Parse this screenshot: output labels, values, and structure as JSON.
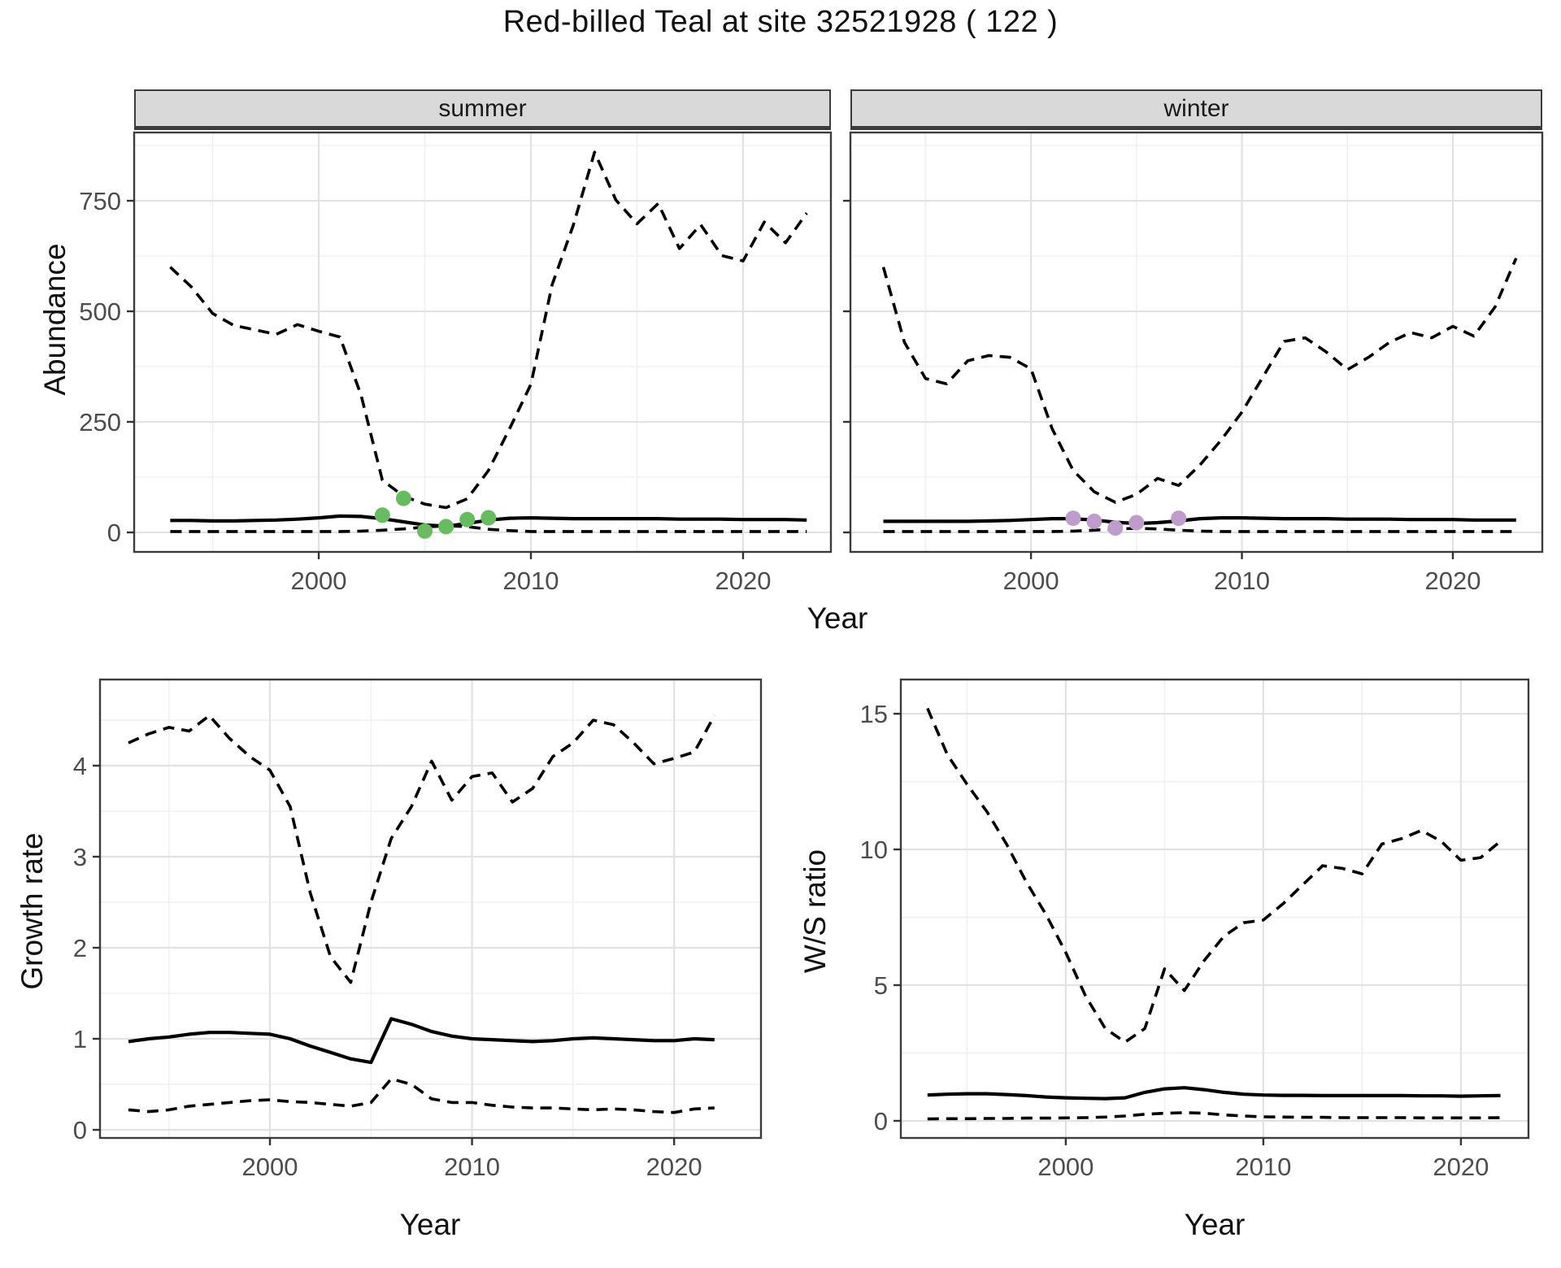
{
  "title": "Red-billed Teal at site 32521928 ( 122 )",
  "facets": [
    {
      "label": "summer"
    },
    {
      "label": "winter"
    }
  ],
  "axes": {
    "top_y": "Abundance",
    "top_x": "Year",
    "bottom_left_y": "Growth rate",
    "bottom_left_x": "Year",
    "bottom_right_y": "W/S ratio",
    "bottom_right_x": "Year"
  },
  "colors": {
    "summer_point": "#67BC5F",
    "winter_point": "#BE9CCC",
    "line": "#000000",
    "grid_major": "#E2E2E2",
    "grid_minor": "#F0F0F0",
    "panel_border": "#3c3c3c",
    "strip_bg": "#d9d9d9",
    "tick_text": "#4d4d4d"
  },
  "chart_data": [
    {
      "id": "abundance_summer",
      "type": "line",
      "facet": "summer",
      "xlabel": "Year",
      "ylabel": "Abundance",
      "xlim": [
        1991.3,
        2024.14
      ],
      "ylim": [
        -44.1,
        904.4
      ],
      "xticks": [
        2000,
        2010,
        2020
      ],
      "xticks_minor": [
        1995,
        2005,
        2015
      ],
      "yticks": [
        0,
        250,
        500,
        750
      ],
      "yticks_minor": [
        125,
        375,
        625,
        875
      ],
      "grid": true,
      "legend": "none",
      "x": [
        1993,
        1994,
        1995,
        1996,
        1997,
        1998,
        1999,
        2000,
        2001,
        2002,
        2003,
        2004,
        2005,
        2006,
        2007,
        2008,
        2009,
        2010,
        2011,
        2012,
        2013,
        2014,
        2015,
        2016,
        2017,
        2018,
        2019,
        2020,
        2021,
        2022,
        2023
      ],
      "series": [
        {
          "name": "ci_upper",
          "style": "dashed",
          "values": [
            600,
            555,
            495,
            468,
            458,
            448,
            470,
            455,
            442,
            310,
            118,
            82,
            64,
            56,
            76,
            140,
            235,
            335,
            560,
            695,
            860,
            752,
            698,
            744,
            642,
            696,
            626,
            614,
            702,
            655,
            722
          ]
        },
        {
          "name": "median",
          "style": "solid",
          "values": [
            27,
            27,
            26,
            26,
            27,
            28,
            30,
            33,
            37,
            36,
            31,
            24,
            17,
            14,
            20,
            28,
            32,
            33,
            32,
            31,
            31,
            31,
            31,
            31,
            30,
            30,
            30,
            29,
            29,
            29,
            28
          ]
        },
        {
          "name": "ci_lower",
          "style": "dashed",
          "values": [
            2,
            2,
            2,
            2,
            2,
            2,
            2,
            2,
            2,
            3,
            5,
            8,
            12,
            15,
            13,
            7,
            4,
            2,
            2,
            2,
            2,
            2,
            2,
            2,
            2,
            2,
            2,
            2,
            2,
            2,
            2
          ]
        }
      ],
      "points": {
        "name": "observed-count-points",
        "color_key": "summer_point",
        "data": [
          [
            2003,
            39
          ],
          [
            2004,
            77
          ],
          [
            2005,
            3
          ],
          [
            2006,
            13
          ],
          [
            2007,
            29
          ],
          [
            2008,
            33
          ]
        ]
      }
    },
    {
      "id": "abundance_winter",
      "type": "line",
      "facet": "winter",
      "xlabel": "Year",
      "ylabel": "Abundance",
      "xlim": [
        1991.44,
        2024.24
      ],
      "ylim": [
        -44.1,
        904.4
      ],
      "xticks": [
        2000,
        2010,
        2020
      ],
      "xticks_minor": [
        1995,
        2005,
        2015
      ],
      "yticks": [
        0,
        250,
        500,
        750
      ],
      "yticks_minor": [
        125,
        375,
        625,
        875
      ],
      "grid": true,
      "legend": "none",
      "show_ytick_labels": false,
      "x": [
        1993,
        1994,
        1995,
        1996,
        1997,
        1998,
        1999,
        2000,
        2001,
        2002,
        2003,
        2004,
        2005,
        2006,
        2007,
        2008,
        2009,
        2010,
        2011,
        2012,
        2013,
        2014,
        2015,
        2016,
        2017,
        2018,
        2019,
        2020,
        2021,
        2022,
        2023
      ],
      "series": [
        {
          "name": "ci_upper",
          "style": "dashed",
          "values": [
            600,
            430,
            348,
            336,
            388,
            400,
            396,
            370,
            235,
            140,
            92,
            68,
            86,
            122,
            106,
            152,
            208,
            272,
            352,
            432,
            440,
            408,
            368,
            396,
            430,
            452,
            440,
            466,
            444,
            510,
            620
          ]
        },
        {
          "name": "median",
          "style": "solid",
          "values": [
            25,
            25,
            25,
            25,
            25,
            26,
            27,
            29,
            31,
            31,
            28,
            23,
            20,
            22,
            26,
            31,
            33,
            33,
            32,
            31,
            31,
            31,
            30,
            30,
            30,
            29,
            29,
            29,
            28,
            28,
            28
          ]
        },
        {
          "name": "ci_lower",
          "style": "dashed",
          "values": [
            2,
            2,
            2,
            2,
            2,
            2,
            2,
            2,
            2,
            3,
            5,
            8,
            9,
            8,
            5,
            3,
            2,
            2,
            2,
            2,
            2,
            2,
            2,
            2,
            2,
            2,
            2,
            2,
            2,
            2,
            2
          ]
        }
      ],
      "points": {
        "name": "observed-count-points",
        "color_key": "winter_point",
        "data": [
          [
            2002,
            32
          ],
          [
            2003,
            25
          ],
          [
            2004,
            10
          ],
          [
            2005,
            22
          ],
          [
            2007,
            32
          ]
        ]
      }
    },
    {
      "id": "growth_rate",
      "type": "line",
      "facet": null,
      "xlabel": "Year",
      "ylabel": "Growth rate",
      "xlim": [
        1991.59,
        2024.3
      ],
      "ylim": [
        -0.089,
        4.946
      ],
      "xticks": [
        2000,
        2010,
        2020
      ],
      "xticks_minor": [
        1995,
        2005,
        2015
      ],
      "yticks": [
        0,
        1,
        2,
        3,
        4
      ],
      "yticks_minor": [
        0.5,
        1.5,
        2.5,
        3.5,
        4.5
      ],
      "grid": true,
      "legend": "none",
      "x": [
        1993,
        1994,
        1995,
        1996,
        1997,
        1998,
        1999,
        2000,
        2001,
        2002,
        2003,
        2004,
        2005,
        2006,
        2007,
        2008,
        2009,
        2010,
        2011,
        2012,
        2013,
        2014,
        2015,
        2016,
        2017,
        2018,
        2019,
        2020,
        2021,
        2022
      ],
      "series": [
        {
          "name": "ci_upper",
          "style": "dashed",
          "values": [
            4.25,
            4.35,
            4.42,
            4.38,
            4.55,
            4.3,
            4.1,
            3.95,
            3.55,
            2.6,
            1.9,
            1.62,
            2.5,
            3.2,
            3.55,
            4.05,
            3.62,
            3.88,
            3.92,
            3.6,
            3.75,
            4.1,
            4.25,
            4.5,
            4.45,
            4.25,
            4.02,
            4.08,
            4.15,
            4.55
          ]
        },
        {
          "name": "median",
          "style": "solid",
          "values": [
            0.97,
            1.0,
            1.02,
            1.05,
            1.07,
            1.07,
            1.06,
            1.05,
            1.0,
            0.92,
            0.85,
            0.78,
            0.74,
            1.22,
            1.16,
            1.08,
            1.03,
            1.0,
            0.99,
            0.98,
            0.97,
            0.98,
            1.0,
            1.01,
            1.0,
            0.99,
            0.98,
            0.98,
            1.0,
            0.99
          ]
        },
        {
          "name": "ci_lower",
          "style": "dashed",
          "values": [
            0.22,
            0.2,
            0.22,
            0.26,
            0.28,
            0.3,
            0.32,
            0.33,
            0.31,
            0.3,
            0.28,
            0.26,
            0.3,
            0.56,
            0.5,
            0.34,
            0.3,
            0.3,
            0.27,
            0.25,
            0.24,
            0.24,
            0.23,
            0.22,
            0.23,
            0.22,
            0.2,
            0.19,
            0.23,
            0.24
          ]
        }
      ]
    },
    {
      "id": "ws_ratio",
      "type": "line",
      "facet": null,
      "xlabel": "Year",
      "ylabel": "W/S ratio",
      "xlim": [
        1991.65,
        2023.42
      ],
      "ylim": [
        -0.63,
        16.26
      ],
      "xticks": [
        2000,
        2010,
        2020
      ],
      "xticks_minor": [
        1995,
        2005,
        2015
      ],
      "yticks": [
        0,
        5,
        10,
        15
      ],
      "yticks_minor": [
        2.5,
        7.5,
        12.5
      ],
      "grid": true,
      "legend": "none",
      "x": [
        1993,
        1994,
        1995,
        1996,
        1997,
        1998,
        1999,
        2000,
        2001,
        2002,
        2003,
        2004,
        2005,
        2006,
        2007,
        2008,
        2009,
        2010,
        2011,
        2012,
        2013,
        2014,
        2015,
        2016,
        2017,
        2018,
        2019,
        2020,
        2021,
        2022
      ],
      "series": [
        {
          "name": "ci_upper",
          "style": "dashed",
          "values": [
            15.2,
            13.5,
            12.4,
            11.4,
            10.2,
            8.8,
            7.6,
            6.2,
            4.6,
            3.4,
            2.9,
            3.4,
            5.6,
            4.8,
            5.9,
            6.8,
            7.3,
            7.4,
            8.0,
            8.7,
            9.4,
            9.3,
            9.1,
            10.2,
            10.4,
            10.7,
            10.3,
            9.6,
            9.7,
            10.3
          ]
        },
        {
          "name": "median",
          "style": "solid",
          "values": [
            0.95,
            0.98,
            1.0,
            1.0,
            0.97,
            0.93,
            0.88,
            0.85,
            0.83,
            0.82,
            0.85,
            1.05,
            1.18,
            1.22,
            1.15,
            1.05,
            0.98,
            0.95,
            0.94,
            0.94,
            0.93,
            0.93,
            0.93,
            0.93,
            0.93,
            0.92,
            0.92,
            0.91,
            0.92,
            0.93
          ]
        },
        {
          "name": "ci_lower",
          "style": "dashed",
          "values": [
            0.07,
            0.08,
            0.08,
            0.09,
            0.09,
            0.1,
            0.1,
            0.11,
            0.12,
            0.14,
            0.18,
            0.24,
            0.28,
            0.3,
            0.28,
            0.22,
            0.18,
            0.15,
            0.14,
            0.13,
            0.13,
            0.12,
            0.12,
            0.12,
            0.12,
            0.11,
            0.11,
            0.11,
            0.11,
            0.12
          ]
        }
      ]
    }
  ]
}
